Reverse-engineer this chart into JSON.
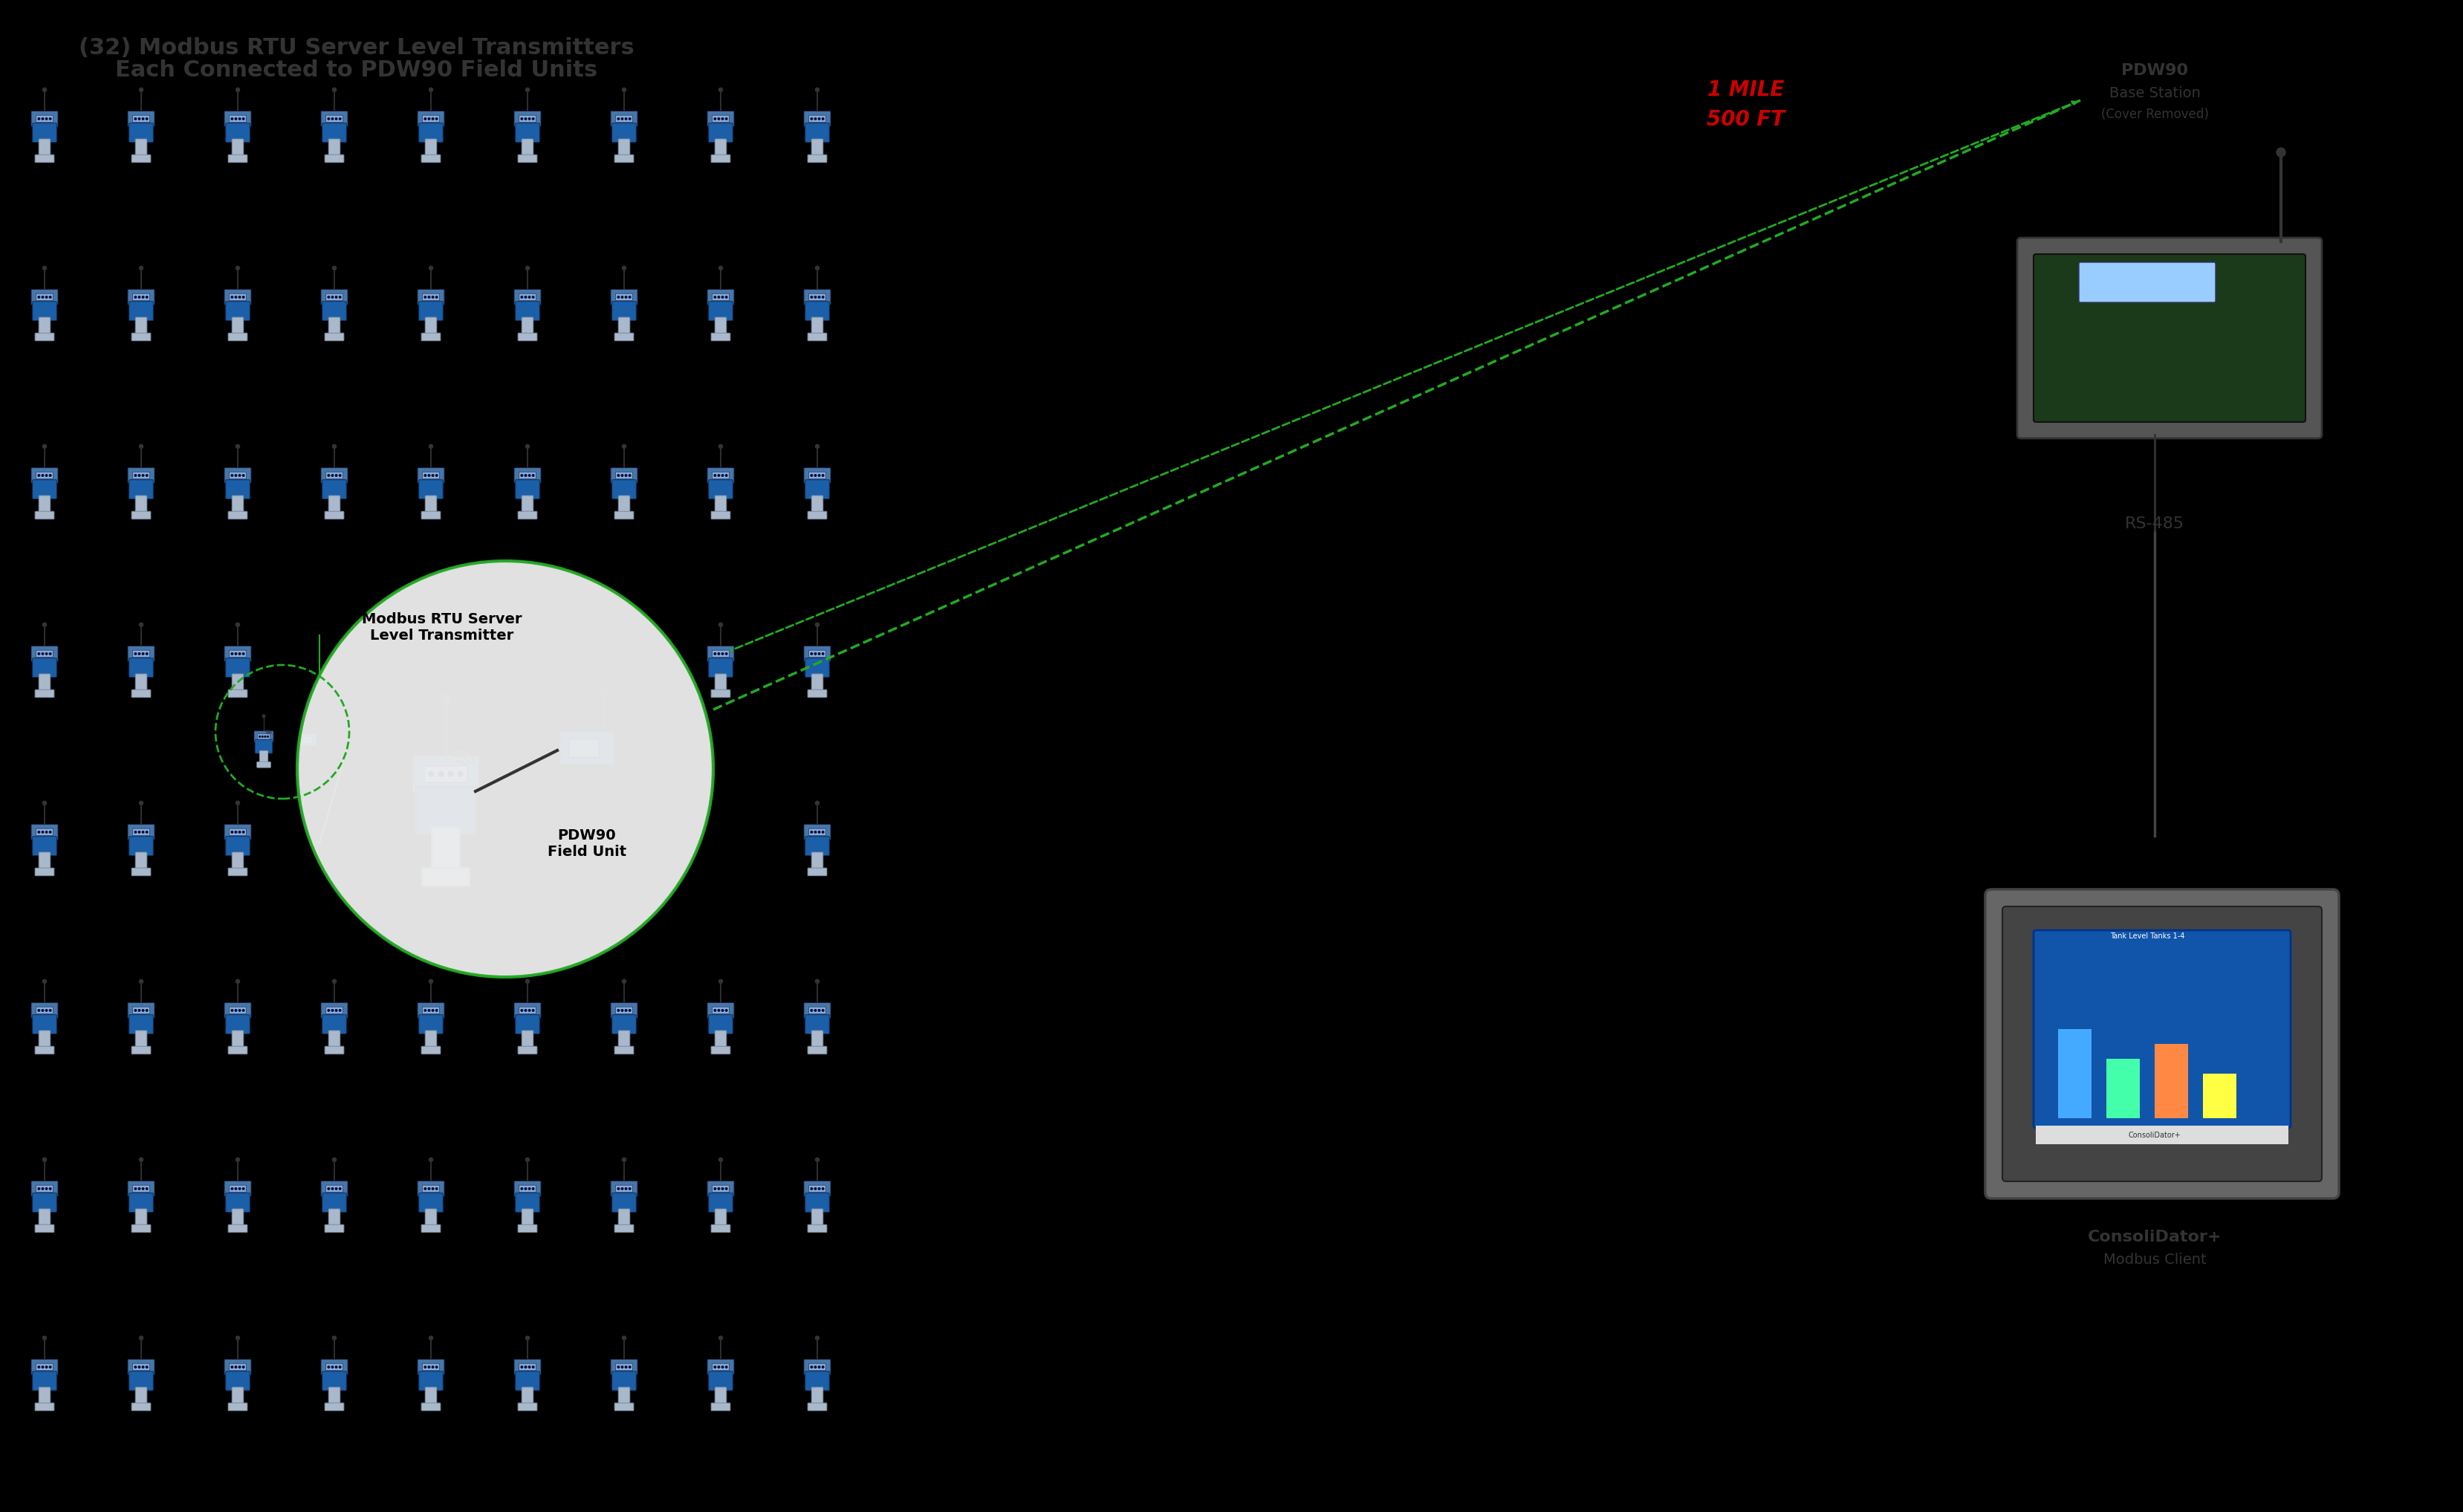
{
  "bg_color": "#000000",
  "title_line1": "(32) Modbus RTU Server Level Transmitters",
  "title_line2": "Each Connected to PDW90 Field Units",
  "title_color": "#333333",
  "title_fontsize": 22,
  "distance_label1": "1 MILE",
  "distance_label2": "500 FT",
  "distance_color": "#cc0000",
  "distance_fontsize": 20,
  "circle_label1": "Modbus RTU Server",
  "circle_label2": "Level Transmitter",
  "circle_label3": "PDW90",
  "circle_label4": "Field Unit",
  "circle_label_color": "#000000",
  "pdw90_base_label1": "PDW90",
  "pdw90_base_label2": "Base Station",
  "pdw90_base_label3": "(Cover Removed)",
  "rs485_label": "RS-485",
  "consolidator_label1": "ConsoliDator+",
  "consolidator_label2": "Modbus Client",
  "label_color": "#333333",
  "grid_rows": 8,
  "grid_cols": 9,
  "transmitter_color_body": "#1a5fa8",
  "transmitter_color_top": "#555555",
  "antenna_color": "#222222",
  "circle_bg": "#f0f0f0",
  "circle_edge": "#22aa22",
  "dashed_line_color": "#22aa22",
  "arrow_color": "#22aa22"
}
